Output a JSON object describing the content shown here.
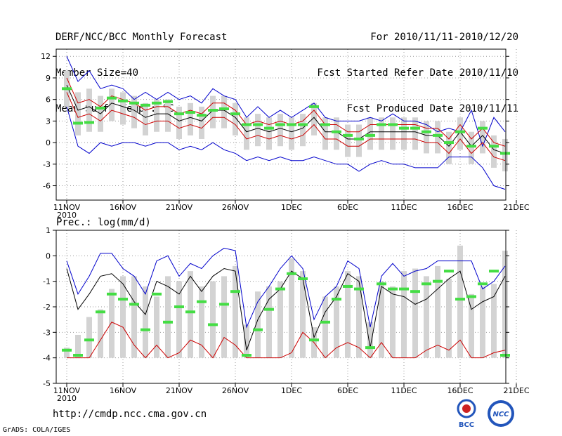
{
  "header": {
    "left": [
      "DERF/NCC/BCC Monthly Forecast",
      "Member Size=40",
      "Mean Surf. Temp.: °C"
    ],
    "right": [
      "For 2010/11/11-2010/12/20",
      "Fcst Started Refer Date 2010/11/10",
      "Fcst Produced Date 2010/11/11"
    ]
  },
  "footer": {
    "url": "http://cmdp.ncc.cma.gov.cn",
    "grads": "GrADS: COLA/IGES",
    "logo_bcc": "BCC",
    "logo_ncc": "NCC"
  },
  "colors": {
    "max": "#0000cc",
    "min": "#0000cc",
    "mean": "#000000",
    "spread": "#cc0000",
    "bar": "#d3d3d3",
    "obs": "#44dd44"
  },
  "chart_data": [
    {
      "type": "line",
      "title": "Mean Surf. Temp.: °C",
      "x_ticks": [
        "11NOV",
        "16NOV",
        "21NOV",
        "26NOV",
        "1DEC",
        "6DEC",
        "11DEC",
        "16DEC",
        "21DEC"
      ],
      "x_year": "2010",
      "x_tick_days": [
        0,
        5,
        10,
        15,
        20,
        25,
        30,
        35,
        40
      ],
      "y_ticks": [
        12,
        9,
        6,
        3,
        0,
        -3,
        -6
      ],
      "ylim": [
        -8,
        13
      ],
      "x": [
        0,
        1,
        2,
        3,
        4,
        5,
        6,
        7,
        8,
        9,
        10,
        11,
        12,
        13,
        14,
        15,
        16,
        17,
        18,
        19,
        20,
        21,
        22,
        23,
        24,
        25,
        26,
        27,
        28,
        29,
        30,
        31,
        32,
        33,
        34,
        35,
        36,
        37,
        38,
        39
      ],
      "series": [
        {
          "name": "max",
          "values": [
            12,
            8.5,
            10,
            7.5,
            8,
            7.5,
            6,
            7,
            6,
            7,
            6,
            6.5,
            5.5,
            7.5,
            6.5,
            6,
            3.5,
            5,
            3.5,
            4.5,
            3.5,
            4.5,
            5.5,
            3.5,
            3,
            3,
            3,
            3.5,
            3,
            4,
            3,
            3,
            2.5,
            1.5,
            2,
            1.5,
            4.5,
            -0.5,
            3.5,
            1.5
          ]
        },
        {
          "name": "min",
          "values": [
            5,
            -0.5,
            -1.5,
            0,
            -0.5,
            0,
            0,
            -0.5,
            0,
            0,
            -1,
            -0.5,
            -1,
            0,
            -1,
            -1.5,
            -2.5,
            -2,
            -2.5,
            -2,
            -2.5,
            -2.5,
            -2,
            -2.5,
            -3,
            -3,
            -4,
            -3,
            -2.5,
            -3,
            -3,
            -3.5,
            -3.5,
            -3.5,
            -2,
            -2,
            -2,
            -3.5,
            -6,
            -6.5
          ]
        },
        {
          "name": "mean",
          "values": [
            8,
            4.5,
            5,
            4,
            5.5,
            5,
            4.5,
            3.5,
            4,
            4,
            3,
            3.5,
            3,
            4.5,
            4.5,
            3.5,
            1.5,
            2,
            1.5,
            2,
            1.5,
            2,
            3.5,
            1.5,
            1.5,
            0.5,
            0.5,
            1.5,
            1.5,
            1.5,
            1.5,
            1.5,
            1,
            1,
            -0.5,
            1.5,
            -0.5,
            1,
            -1,
            -1.5
          ]
        },
        {
          "name": "spread_high",
          "values": [
            9,
            5.5,
            6,
            5,
            6.5,
            6,
            5.5,
            4.5,
            5,
            5,
            4,
            4.5,
            4,
            5.5,
            5.5,
            4.5,
            2.5,
            3,
            2.5,
            3,
            2.5,
            3,
            4.5,
            2.5,
            2.5,
            1.5,
            1.5,
            2.5,
            2.5,
            2.5,
            2.5,
            2.5,
            2,
            2,
            0.5,
            2.5,
            0.5,
            2,
            0,
            -0.5
          ]
        },
        {
          "name": "spread_low",
          "values": [
            7,
            3.5,
            4,
            3,
            4.5,
            4,
            3.5,
            2.5,
            3,
            3,
            2,
            2.5,
            2,
            3.5,
            3.5,
            2.5,
            0.5,
            1,
            0.5,
            1,
            0.5,
            1,
            2.5,
            0.5,
            0.5,
            -0.5,
            -0.5,
            0.5,
            0.5,
            0.5,
            0.5,
            0.5,
            0,
            0,
            -1.5,
            0.5,
            -1.5,
            0,
            -2,
            -2.5
          ]
        },
        {
          "name": "bar_high",
          "values": [
            10,
            7,
            7.5,
            6.5,
            7.5,
            7,
            6.5,
            5.5,
            6,
            6,
            5,
            5.5,
            5,
            6.5,
            6.5,
            5.5,
            3.5,
            4,
            3.5,
            4,
            3.5,
            4,
            5.5,
            3.5,
            3.5,
            2.5,
            2.5,
            3.5,
            3.5,
            3.5,
            3.5,
            3.5,
            3,
            3,
            1.5,
            3.5,
            1.5,
            3,
            1,
            0.5
          ]
        },
        {
          "name": "bar_low",
          "values": [
            5,
            1,
            1.5,
            1.5,
            3,
            2.5,
            2,
            1,
            1.5,
            1.5,
            0.5,
            1,
            0.5,
            2,
            2,
            1,
            -1,
            -0.5,
            -1,
            -0.5,
            -1,
            -0.5,
            1,
            -1,
            -1,
            -2,
            -2,
            -1,
            -1,
            -1,
            -1,
            -1,
            -1.5,
            -1.5,
            -3,
            -1,
            -3,
            -1.5,
            -3.5,
            -4
          ]
        },
        {
          "name": "obs",
          "values": [
            7.5,
            2.7,
            2.8,
            4.8,
            6.2,
            5.8,
            5.5,
            5.2,
            5.5,
            5.7,
            4,
            4.2,
            3.8,
            4.5,
            4.7,
            4,
            2.5,
            2.5,
            2,
            2.5,
            2.5,
            2.5,
            5,
            2.5,
            1.5,
            1,
            0.5,
            1,
            2.5,
            2.5,
            2,
            2,
            1.5,
            1,
            0,
            1.5,
            -0.5,
            2,
            -0.5,
            -1.5
          ]
        }
      ]
    },
    {
      "type": "line",
      "title": "Prec.: log(mm/d)",
      "x_ticks": [
        "11NOV",
        "16NOV",
        "21NOV",
        "26NOV",
        "1DEC",
        "6DEC",
        "11DEC",
        "16DEC",
        "21DEC"
      ],
      "x_year": "2010",
      "x_tick_days": [
        0,
        5,
        10,
        15,
        20,
        25,
        30,
        35,
        40
      ],
      "y_ticks": [
        1,
        0,
        -1,
        -2,
        -3,
        -4,
        -5
      ],
      "ylim": [
        -5,
        1
      ],
      "x": [
        0,
        1,
        2,
        3,
        4,
        5,
        6,
        7,
        8,
        9,
        10,
        11,
        12,
        13,
        14,
        15,
        16,
        17,
        18,
        19,
        20,
        21,
        22,
        23,
        24,
        25,
        26,
        27,
        28,
        29,
        30,
        31,
        32,
        33,
        34,
        35,
        36,
        37,
        38,
        39
      ],
      "series": [
        {
          "name": "max",
          "values": [
            -0.2,
            -1.5,
            -0.8,
            0.1,
            0.1,
            -0.5,
            -0.8,
            -1.5,
            -0.2,
            0,
            -0.8,
            -0.3,
            -0.5,
            0,
            0.3,
            0.2,
            -2.8,
            -1.8,
            -1.2,
            -0.5,
            0,
            -0.5,
            -2.5,
            -1.6,
            -1.2,
            -0.2,
            -0.5,
            -2.8,
            -0.8,
            -0.3,
            -0.8,
            -0.6,
            -0.5,
            -0.2,
            -0.2,
            -0.2,
            -0.2,
            -1.3,
            -1,
            -0.4
          ]
        },
        {
          "name": "min",
          "values": [
            -4,
            -4,
            -4,
            -3.3,
            -2.6,
            -2.8,
            -3.5,
            -4,
            -3.5,
            -4,
            -3.8,
            -3.3,
            -3.5,
            -4,
            -3.2,
            -3.5,
            -4,
            -4,
            -4,
            -4,
            -3.8,
            -3,
            -3.4,
            -4,
            -3.6,
            -3.4,
            -3.6,
            -4,
            -3.4,
            -4,
            -4,
            -4,
            -3.7,
            -3.5,
            -3.7,
            -3.3,
            -4,
            -4,
            -3.8,
            -3.7
          ]
        },
        {
          "name": "mean",
          "values": [
            -0.5,
            -2.1,
            -1.5,
            -0.8,
            -0.7,
            -1.1,
            -1.8,
            -2.3,
            -1,
            -1.2,
            -1.5,
            -0.8,
            -1.4,
            -0.8,
            -0.5,
            -0.6,
            -3.7,
            -2.5,
            -1.7,
            -1.3,
            -0.6,
            -0.9,
            -3.2,
            -2.2,
            -1.6,
            -0.7,
            -1,
            -3.6,
            -1.2,
            -1.5,
            -1.6,
            -1.9,
            -1.7,
            -1.3,
            -0.9,
            -0.6,
            -2.1,
            -1.8,
            -1.6,
            -0.8
          ]
        },
        {
          "name": "bar_top",
          "values": [
            -3.6,
            -3.1,
            -2.4,
            -2.1,
            -1.3,
            -0.8,
            -0.8,
            -1.2,
            -1.6,
            -0.8,
            -1.0,
            -0.6,
            -1.2,
            -1.0,
            -0.8,
            -0.4,
            -2.7,
            -1.4,
            -1.2,
            -1.0,
            -0.1,
            -0.6,
            -2.8,
            -1.6,
            -1.2,
            -0.6,
            -0.8,
            -2.6,
            -1.0,
            -1.2,
            -0.6,
            -0.5,
            -0.8,
            -0.4,
            -0.9,
            0.4,
            -1.5,
            -1.2,
            -1.1,
            0.2
          ]
        },
        {
          "name": "obs",
          "values": [
            -3.7,
            -3.9,
            -3.3,
            -2.2,
            -1.5,
            -1.7,
            -1.9,
            -2.9,
            -1.5,
            -2.6,
            -2.0,
            -2.2,
            -1.8,
            -2.7,
            -1.9,
            -1.4,
            -3.9,
            -2.9,
            -2.1,
            -1.3,
            -0.7,
            -0.9,
            -3.3,
            -2.6,
            -1.7,
            -1.2,
            -1.3,
            -3.6,
            -1.1,
            -1.3,
            -1.3,
            -1.4,
            -1.1,
            -1,
            -0.6,
            -1.7,
            -1.6,
            -1.1,
            -0.6,
            -3.9
          ]
        }
      ]
    }
  ]
}
